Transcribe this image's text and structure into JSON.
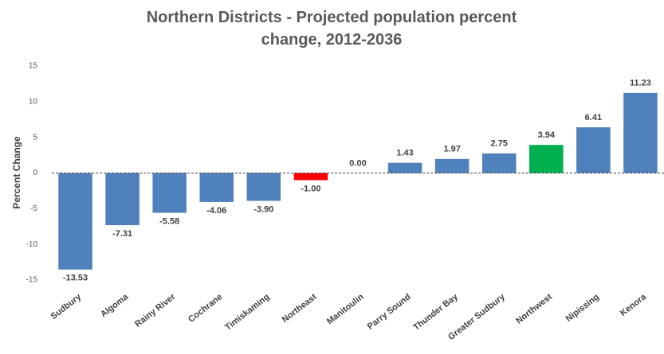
{
  "chart_data": {
    "type": "bar",
    "title": "Northern Districts - Projected population percent change, 2012-2036",
    "y_label": "Percent Change",
    "categories": [
      "Sudbury",
      "Algoma",
      "Rainy River",
      "Cochrane",
      "Timiskaming",
      "Northeast",
      "Manitoulin",
      "Parry Sound",
      "Thunder Bay",
      "Greater Sudbury",
      "Northwest",
      "Nipissing",
      "Kenora"
    ],
    "values": [
      -13.53,
      -7.31,
      -5.58,
      -4.06,
      -3.9,
      -1.0,
      0.0,
      1.43,
      1.97,
      2.75,
      3.94,
      6.41,
      11.23
    ],
    "value_labels": [
      "-13.53",
      "-7.31",
      "-5.58",
      "-4.06",
      "-3.90",
      "-1.00",
      "0.00",
      "1.43",
      "1.97",
      "2.75",
      "3.94",
      "6.41",
      "11.23"
    ],
    "colors": [
      "#4f81bd",
      "#4f81bd",
      "#4f81bd",
      "#4f81bd",
      "#4f81bd",
      "#ff0000",
      "#4f81bd",
      "#4f81bd",
      "#4f81bd",
      "#4f81bd",
      "#00b050",
      "#4f81bd",
      "#4f81bd"
    ],
    "ylim": [
      -15,
      15
    ],
    "yticks": [
      -15,
      -10,
      -5,
      0,
      5,
      10,
      15
    ],
    "grid": false
  }
}
